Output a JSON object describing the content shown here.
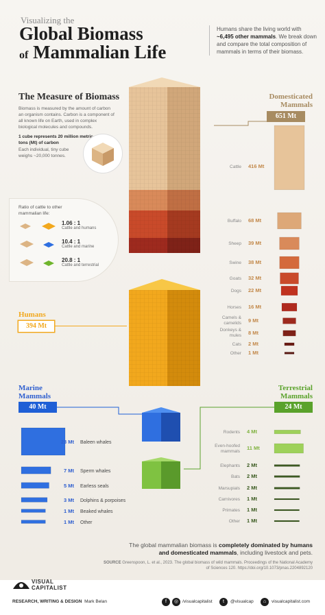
{
  "header": {
    "kicker": "Visualizing the",
    "title_line1": "Global Biomass",
    "title_line2_prefix": "of",
    "title_line2": "Mammalian Life",
    "intro_part1": "Humans share the living world with ",
    "intro_bold": "~6,495 other mammals",
    "intro_part2": ". We break down and compare the total composition of mammals in terms of their biomass."
  },
  "measure": {
    "heading": "The Measure of Biomass",
    "body": "Biomass is measured by the amount of carbon an organism contains. Carbon is a component of all known life on Earth, used in complex biological molecules and compounds.",
    "cube_heading": "1 cube represents 20 million metric tons (Mt) of carbon",
    "cube_body": "Each individual, tiny cube weighs ~20,000 tonnes."
  },
  "ratio": {
    "heading": "Ratio of cattle to other mammalian life:",
    "items": [
      {
        "value": "1.06 : 1",
        "label": "Cattle and humans",
        "color": "#f2a81d"
      },
      {
        "value": "10.4 : 1",
        "label": "Cattle and marine",
        "color": "#2f6fe0"
      },
      {
        "value": "20.8 : 1",
        "label": "Cattle and terrestrial",
        "color": "#6fb52c"
      }
    ]
  },
  "colors": {
    "domesticated": "#a78b61",
    "humans": "#f2a81d",
    "marine": "#1f5fd6",
    "terrestrial": "#5aa22b"
  },
  "chart_data": [
    {
      "type": "bar",
      "title": "Domesticated Mammals",
      "total": "651 Mt",
      "categories": [
        "Cattle",
        "Buffalo",
        "Sheep",
        "Swine",
        "Goats",
        "Dogs",
        "Horses",
        "Camels & camelids",
        "Donkeys & mules",
        "Cats",
        "Other"
      ],
      "values": [
        416,
        68,
        39,
        38,
        32,
        22,
        16,
        9,
        8,
        2,
        1
      ],
      "labels": [
        "416 Mt",
        "68 Mt",
        "39 Mt",
        "38 Mt",
        "32 Mt",
        "22 Mt",
        "16 Mt",
        "9 Mt",
        "8 Mt",
        "2 Mt",
        "1 Mt"
      ],
      "colors": [
        "#e7c49a",
        "#dda878",
        "#d98a5a",
        "#d46a3c",
        "#c94a2a",
        "#c0321f",
        "#b02a1e",
        "#9e2a1e",
        "#7f2218",
        "#6a1c15",
        "#5a1812"
      ]
    },
    {
      "type": "bar",
      "title": "Humans",
      "total": "394 Mt",
      "categories": [
        "Humans"
      ],
      "values": [
        394
      ],
      "labels": [
        "394 Mt"
      ]
    },
    {
      "type": "bar",
      "title": "Marine Mammals",
      "total": "40 Mt",
      "categories": [
        "Baleen whales",
        "Sperm whales",
        "Earless seals",
        "Dolphins & porpoises",
        "Beaked whales",
        "Other"
      ],
      "values": [
        23,
        7,
        5,
        3,
        1,
        1
      ],
      "labels": [
        "23 Mt",
        "7 Mt",
        "5 Mt",
        "3 Mt",
        "1 Mt",
        "1 Mt"
      ]
    },
    {
      "type": "bar",
      "title": "Terrestrial Mammals",
      "total": "24 Mt",
      "categories": [
        "Rodents",
        "Even-hoofed mammals",
        "Elephants",
        "Bats",
        "Marsupials",
        "Carnivores",
        "Primates",
        "Other"
      ],
      "values": [
        4,
        11,
        2,
        2,
        2,
        1,
        1,
        1
      ],
      "labels": [
        "4 Mt",
        "11 Mt",
        "2 Mt",
        "2 Mt",
        "2 Mt",
        "1 Mt",
        "1 Mt",
        "1 Mt"
      ]
    }
  ],
  "sections": {
    "domesticated_line1": "Domesticated",
    "domesticated_line2": "Mammals",
    "domesticated_total": "651 Mt",
    "humans": "Humans",
    "humans_total": "394 Mt",
    "marine_line1": "Marine",
    "marine_line2": "Mammals",
    "marine_total": "40 Mt",
    "terrestrial_line1": "Terrestrial",
    "terrestrial_line2": "Mammals",
    "terrestrial_total": "24 Mt"
  },
  "conclusion": {
    "part1": "The global mammalian biomass is ",
    "bold": "completely dominated by humans and domesticated mammals",
    "part2": ", including livestock and pets."
  },
  "source": {
    "label": "SOURCE",
    "text": " Greenspoon, L. et al., 2023. The global biomass of wild mammals. Proceedings of the National Academy of Sciences 120. https://doi.org/10.1073/pnas.2204892120"
  },
  "footer": {
    "brand_line1": "VISUAL",
    "brand_line2": "CAPITALIST",
    "credit_label": "RESEARCH, WRITING & DESIGN",
    "credit_name": "Mark Belan",
    "social1": "/visualcapitalist",
    "social2": "@visualcap",
    "social3": "visualcapitalist.com",
    "icon_facebook": "f",
    "icon_instagram": "◎",
    "icon_twitter": "t",
    "icon_web": "⌂"
  }
}
